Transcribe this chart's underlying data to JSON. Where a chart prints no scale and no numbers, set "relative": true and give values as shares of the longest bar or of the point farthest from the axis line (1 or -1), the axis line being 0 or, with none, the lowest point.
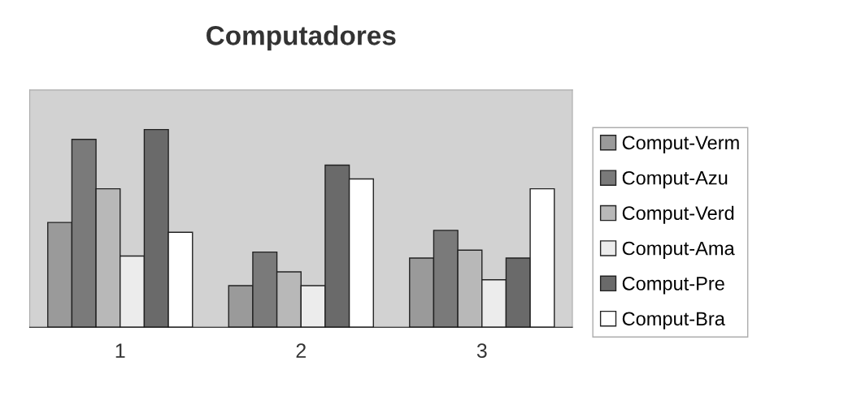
{
  "chart_data": {
    "type": "bar",
    "title": "Computadores",
    "relative": true,
    "legend": "right",
    "grid": false,
    "categories": [
      "1",
      "2",
      "3"
    ],
    "series": [
      {
        "name": "Comput-Verm",
        "color": "#9a9a9a",
        "values": [
          0.53,
          0.21,
          0.35
        ]
      },
      {
        "name": "Comput-Azu",
        "color": "#7a7a7a",
        "values": [
          0.95,
          0.38,
          0.49
        ]
      },
      {
        "name": "Comput-Verd",
        "color": "#b8b8b8",
        "values": [
          0.7,
          0.28,
          0.39
        ]
      },
      {
        "name": "Comput-Ama",
        "color": "#ececec",
        "values": [
          0.36,
          0.21,
          0.24
        ]
      },
      {
        "name": "Comput-Pre",
        "color": "#6a6a6a",
        "values": [
          1.0,
          0.82,
          0.35
        ]
      },
      {
        "name": "Comput-Bra",
        "color": "#ffffff",
        "values": [
          0.48,
          0.75,
          0.7
        ]
      }
    ]
  }
}
